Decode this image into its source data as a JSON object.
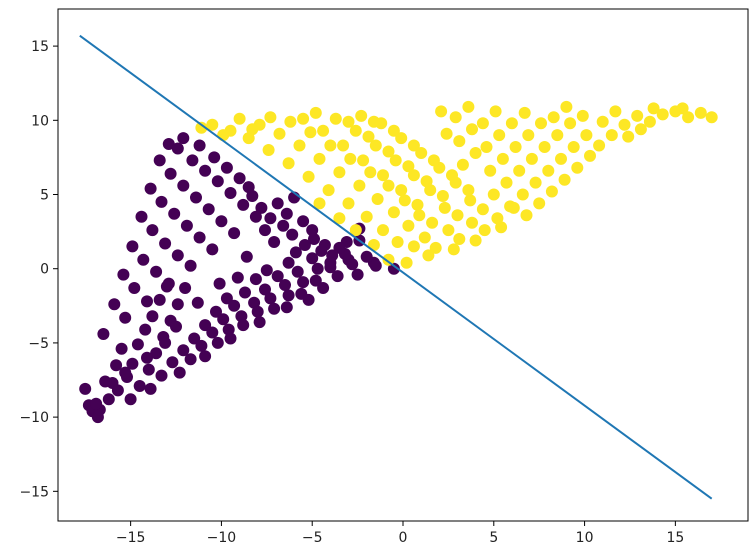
{
  "chart_data": {
    "type": "scatter",
    "title": "",
    "xlabel": "",
    "ylabel": "",
    "xlim": [
      -19,
      19
    ],
    "ylim": [
      -17,
      17.5
    ],
    "xticks": [
      -15,
      -10,
      -5,
      0,
      5,
      10,
      15
    ],
    "yticks": [
      -15,
      -10,
      -5,
      0,
      5,
      10,
      15
    ],
    "grid": false,
    "legend": "none",
    "point_series": [
      {
        "color": "#440154",
        "region": "triangle between (0,0), (-17.5,-10) and (-12,9); points lie below the decision line",
        "points": [
          [
            -17.5,
            -8.1
          ],
          [
            -17.3,
            -9.2
          ],
          [
            -17.1,
            -9.6
          ],
          [
            -16.8,
            -10
          ],
          [
            -16.2,
            -8.8
          ],
          [
            -16.0,
            -7.7
          ],
          [
            -15.8,
            -6.5
          ],
          [
            -15.5,
            -5.4
          ],
          [
            -15.7,
            -8.2
          ],
          [
            -15.2,
            -7.3
          ],
          [
            -14.9,
            -6.4
          ],
          [
            -14.6,
            -5.1
          ],
          [
            -14.2,
            -4.1
          ],
          [
            -13.8,
            -3.2
          ],
          [
            -13.4,
            -2.1
          ],
          [
            -13.0,
            -1.2
          ],
          [
            -15.0,
            -8.8
          ],
          [
            -14.5,
            -7.9
          ],
          [
            -14.0,
            -6.8
          ],
          [
            -13.6,
            -5.7
          ],
          [
            -13.2,
            -4.6
          ],
          [
            -12.8,
            -3.5
          ],
          [
            -12.4,
            -2.4
          ],
          [
            -12.0,
            -1.3
          ],
          [
            -13.9,
            -8.1
          ],
          [
            -13.3,
            -7.2
          ],
          [
            -12.7,
            -6.3
          ],
          [
            -12.1,
            -5.5
          ],
          [
            -11.5,
            -4.7
          ],
          [
            -10.9,
            -3.8
          ],
          [
            -10.3,
            -2.9
          ],
          [
            -9.7,
            -2.0
          ],
          [
            -12.3,
            -7.0
          ],
          [
            -11.7,
            -6.1
          ],
          [
            -11.1,
            -5.2
          ],
          [
            -10.5,
            -4.3
          ],
          [
            -9.9,
            -3.4
          ],
          [
            -9.3,
            -2.5
          ],
          [
            -8.7,
            -1.6
          ],
          [
            -8.1,
            -0.7
          ],
          [
            -10.9,
            -5.9
          ],
          [
            -10.2,
            -5.0
          ],
          [
            -9.6,
            -4.1
          ],
          [
            -8.9,
            -3.2
          ],
          [
            -8.2,
            -2.3
          ],
          [
            -7.6,
            -1.4
          ],
          [
            -6.9,
            -0.5
          ],
          [
            -6.3,
            0.4
          ],
          [
            -9.5,
            -4.7
          ],
          [
            -8.8,
            -3.8
          ],
          [
            -8.0,
            -2.9
          ],
          [
            -7.3,
            -2.0
          ],
          [
            -6.5,
            -1.1
          ],
          [
            -5.8,
            -0.2
          ],
          [
            -5.0,
            0.7
          ],
          [
            -4.3,
            1.6
          ],
          [
            -7.9,
            -3.6
          ],
          [
            -7.1,
            -2.7
          ],
          [
            -6.3,
            -1.8
          ],
          [
            -5.5,
            -0.9
          ],
          [
            -4.7,
            0.0
          ],
          [
            -3.9,
            0.9
          ],
          [
            -3.1,
            1.8
          ],
          [
            -2.4,
            2.7
          ],
          [
            -6.4,
            -2.6
          ],
          [
            -5.6,
            -1.7
          ],
          [
            -4.8,
            -0.8
          ],
          [
            -4.0,
            0.1
          ],
          [
            -3.2,
            1.0
          ],
          [
            -2.4,
            1.9
          ],
          [
            -1.6,
            0.4
          ],
          [
            -0.5,
            0.0
          ],
          [
            -16.5,
            -4.4
          ],
          [
            -15.9,
            -2.4
          ],
          [
            -15.4,
            -0.4
          ],
          [
            -14.9,
            1.5
          ],
          [
            -14.4,
            3.5
          ],
          [
            -13.9,
            5.4
          ],
          [
            -13.4,
            7.3
          ],
          [
            -12.9,
            8.4
          ],
          [
            -15.3,
            -3.3
          ],
          [
            -14.8,
            -1.3
          ],
          [
            -14.3,
            0.6
          ],
          [
            -13.8,
            2.6
          ],
          [
            -13.3,
            4.5
          ],
          [
            -12.8,
            6.4
          ],
          [
            -12.4,
            8.1
          ],
          [
            -12.1,
            8.8
          ],
          [
            -14.1,
            -2.2
          ],
          [
            -13.6,
            -0.2
          ],
          [
            -13.1,
            1.7
          ],
          [
            -12.6,
            3.7
          ],
          [
            -12.1,
            5.6
          ],
          [
            -11.6,
            7.3
          ],
          [
            -11.2,
            8.3
          ],
          [
            -12.9,
            -1.0
          ],
          [
            -12.4,
            0.9
          ],
          [
            -11.9,
            2.9
          ],
          [
            -11.4,
            4.8
          ],
          [
            -10.9,
            6.6
          ],
          [
            -10.4,
            7.5
          ],
          [
            -11.7,
            0.2
          ],
          [
            -11.2,
            2.1
          ],
          [
            -10.7,
            4.0
          ],
          [
            -10.2,
            5.9
          ],
          [
            -9.7,
            6.8
          ],
          [
            -10.5,
            1.3
          ],
          [
            -10.0,
            3.2
          ],
          [
            -9.5,
            5.1
          ],
          [
            -9.0,
            6.1
          ],
          [
            -8.5,
            5.5
          ],
          [
            -9.3,
            2.4
          ],
          [
            -8.8,
            4.3
          ],
          [
            -8.3,
            4.9
          ],
          [
            -7.8,
            4.1
          ],
          [
            -7.3,
            3.4
          ],
          [
            -8.1,
            3.5
          ],
          [
            -7.6,
            2.6
          ],
          [
            -7.1,
            1.8
          ],
          [
            -6.6,
            2.9
          ],
          [
            -6.1,
            2.3
          ],
          [
            -6.9,
            4.4
          ],
          [
            -6.4,
            3.7
          ],
          [
            -5.9,
            1.1
          ],
          [
            -5.4,
            1.6
          ],
          [
            -4.9,
            2.0
          ],
          [
            -6.0,
            4.8
          ],
          [
            -5.5,
            3.2
          ],
          [
            -5.0,
            2.6
          ],
          [
            -4.5,
            1.2
          ],
          [
            -4.0,
            0.4
          ],
          [
            -3.5,
            1.4
          ],
          [
            -3.0,
            0.6
          ],
          [
            -2.5,
            -0.4
          ],
          [
            -2.0,
            0.8
          ],
          [
            -1.5,
            0.2
          ],
          [
            -5.2,
            -2.1
          ],
          [
            -4.4,
            -1.3
          ],
          [
            -3.6,
            -0.5
          ],
          [
            -2.8,
            0.3
          ],
          [
            -7.5,
            -0.1
          ],
          [
            -8.6,
            0.8
          ],
          [
            -9.1,
            -0.6
          ],
          [
            -10.1,
            -1.0
          ],
          [
            -11.3,
            -2.3
          ],
          [
            -12.5,
            -3.9
          ],
          [
            -13.1,
            -5.0
          ],
          [
            -14.1,
            -6.0
          ],
          [
            -15.3,
            -7.0
          ],
          [
            -16.4,
            -7.6
          ],
          [
            -16.7,
            -9.5
          ],
          [
            -16.9,
            -9.1
          ]
        ]
      },
      {
        "color": "#fde725",
        "region": "triangle between (0,0), (-11,9.5) and (17,10.5); points lie above the decision line",
        "points": [
          [
            0.2,
            0.4
          ],
          [
            0.6,
            1.5
          ],
          [
            1.2,
            2.1
          ],
          [
            1.8,
            1.4
          ],
          [
            2.5,
            2.6
          ],
          [
            3.1,
            2.0
          ],
          [
            3.8,
            3.1
          ],
          [
            4.5,
            2.6
          ],
          [
            -0.3,
            1.8
          ],
          [
            0.3,
            2.9
          ],
          [
            0.9,
            3.6
          ],
          [
            1.6,
            3.1
          ],
          [
            2.3,
            4.1
          ],
          [
            3.0,
            3.6
          ],
          [
            3.7,
            4.6
          ],
          [
            4.4,
            4.0
          ],
          [
            -1.1,
            2.6
          ],
          [
            -0.5,
            3.8
          ],
          [
            0.1,
            4.6
          ],
          [
            0.8,
            4.3
          ],
          [
            1.5,
            5.3
          ],
          [
            2.2,
            4.9
          ],
          [
            2.9,
            5.8
          ],
          [
            3.6,
            5.3
          ],
          [
            -2.0,
            3.5
          ],
          [
            -1.4,
            4.7
          ],
          [
            -0.8,
            5.6
          ],
          [
            -0.1,
            5.3
          ],
          [
            0.6,
            6.3
          ],
          [
            1.3,
            5.9
          ],
          [
            2.0,
            6.8
          ],
          [
            2.7,
            6.3
          ],
          [
            -3.0,
            4.4
          ],
          [
            -2.4,
            5.6
          ],
          [
            -1.8,
            6.5
          ],
          [
            -1.1,
            6.3
          ],
          [
            -0.4,
            7.3
          ],
          [
            0.3,
            6.9
          ],
          [
            1.0,
            7.8
          ],
          [
            1.7,
            7.3
          ],
          [
            -4.1,
            5.3
          ],
          [
            -3.5,
            6.5
          ],
          [
            -2.9,
            7.4
          ],
          [
            -2.2,
            7.3
          ],
          [
            -1.5,
            8.3
          ],
          [
            -0.8,
            7.9
          ],
          [
            -0.1,
            8.8
          ],
          [
            0.6,
            8.3
          ],
          [
            -5.2,
            6.2
          ],
          [
            -4.6,
            7.4
          ],
          [
            -4.0,
            8.3
          ],
          [
            -3.3,
            8.3
          ],
          [
            -2.6,
            9.3
          ],
          [
            -1.9,
            8.9
          ],
          [
            -1.2,
            9.8
          ],
          [
            -0.5,
            9.3
          ],
          [
            -6.3,
            7.1
          ],
          [
            -5.7,
            8.3
          ],
          [
            -5.1,
            9.2
          ],
          [
            -4.4,
            9.3
          ],
          [
            -3.7,
            10.1
          ],
          [
            -3.0,
            9.9
          ],
          [
            -2.3,
            10.3
          ],
          [
            -1.6,
            9.9
          ],
          [
            -7.4,
            8.0
          ],
          [
            -6.8,
            9.1
          ],
          [
            -6.2,
            9.9
          ],
          [
            -5.5,
            10.1
          ],
          [
            -4.8,
            10.5
          ],
          [
            -8.5,
            8.8
          ],
          [
            -7.9,
            9.7
          ],
          [
            -7.3,
            10.2
          ],
          [
            -9.5,
            9.3
          ],
          [
            -9.0,
            10.1
          ],
          [
            -10.5,
            9.7
          ],
          [
            -11.1,
            9.5
          ],
          [
            -8.3,
            9.4
          ],
          [
            -9.9,
            9.0
          ],
          [
            5.2,
            3.4
          ],
          [
            5.9,
            4.2
          ],
          [
            6.6,
            5.0
          ],
          [
            7.3,
            5.8
          ],
          [
            8.0,
            6.6
          ],
          [
            8.7,
            7.4
          ],
          [
            9.4,
            8.2
          ],
          [
            10.1,
            9.0
          ],
          [
            5.0,
            5.0
          ],
          [
            5.7,
            5.8
          ],
          [
            6.4,
            6.6
          ],
          [
            7.1,
            7.4
          ],
          [
            7.8,
            8.2
          ],
          [
            8.5,
            9.0
          ],
          [
            9.2,
            9.8
          ],
          [
            9.9,
            10.3
          ],
          [
            4.8,
            6.6
          ],
          [
            5.5,
            7.4
          ],
          [
            6.2,
            8.2
          ],
          [
            6.9,
            9.0
          ],
          [
            7.6,
            9.8
          ],
          [
            8.3,
            10.2
          ],
          [
            9.0,
            10.9
          ],
          [
            4.6,
            8.2
          ],
          [
            5.3,
            9.0
          ],
          [
            6.0,
            9.8
          ],
          [
            6.7,
            10.5
          ],
          [
            4.4,
            9.8
          ],
          [
            5.1,
            10.6
          ],
          [
            3.3,
            7.0
          ],
          [
            4.0,
            7.8
          ],
          [
            3.1,
            8.6
          ],
          [
            3.8,
            9.4
          ],
          [
            2.9,
            10.2
          ],
          [
            3.6,
            10.9
          ],
          [
            2.4,
            9.1
          ],
          [
            2.1,
            10.6
          ],
          [
            10.8,
            8.3
          ],
          [
            11.5,
            9.0
          ],
          [
            12.2,
            9.7
          ],
          [
            12.9,
            10.3
          ],
          [
            13.6,
            9.9
          ],
          [
            14.3,
            10.4
          ],
          [
            15.0,
            10.6
          ],
          [
            15.7,
            10.2
          ],
          [
            16.4,
            10.5
          ],
          [
            17.0,
            10.2
          ],
          [
            11.0,
            9.9
          ],
          [
            11.7,
            10.6
          ],
          [
            12.4,
            8.9
          ],
          [
            13.1,
            9.4
          ],
          [
            13.8,
            10.8
          ],
          [
            15.4,
            10.8
          ],
          [
            10.3,
            7.6
          ],
          [
            9.6,
            6.8
          ],
          [
            8.9,
            6.0
          ],
          [
            8.2,
            5.2
          ],
          [
            7.5,
            4.4
          ],
          [
            6.8,
            3.6
          ],
          [
            6.1,
            4.1
          ],
          [
            5.4,
            2.8
          ],
          [
            1.4,
            0.9
          ],
          [
            2.8,
            1.3
          ],
          [
            4.0,
            1.9
          ],
          [
            -0.8,
            0.6
          ],
          [
            -1.6,
            1.6
          ],
          [
            -2.6,
            2.6
          ],
          [
            -3.5,
            3.4
          ],
          [
            -4.6,
            4.4
          ]
        ]
      }
    ],
    "line_series": [
      {
        "color": "#1f77b4",
        "x": [
          -17.8,
          17.0
        ],
        "y": [
          15.7,
          -15.5
        ]
      }
    ]
  }
}
